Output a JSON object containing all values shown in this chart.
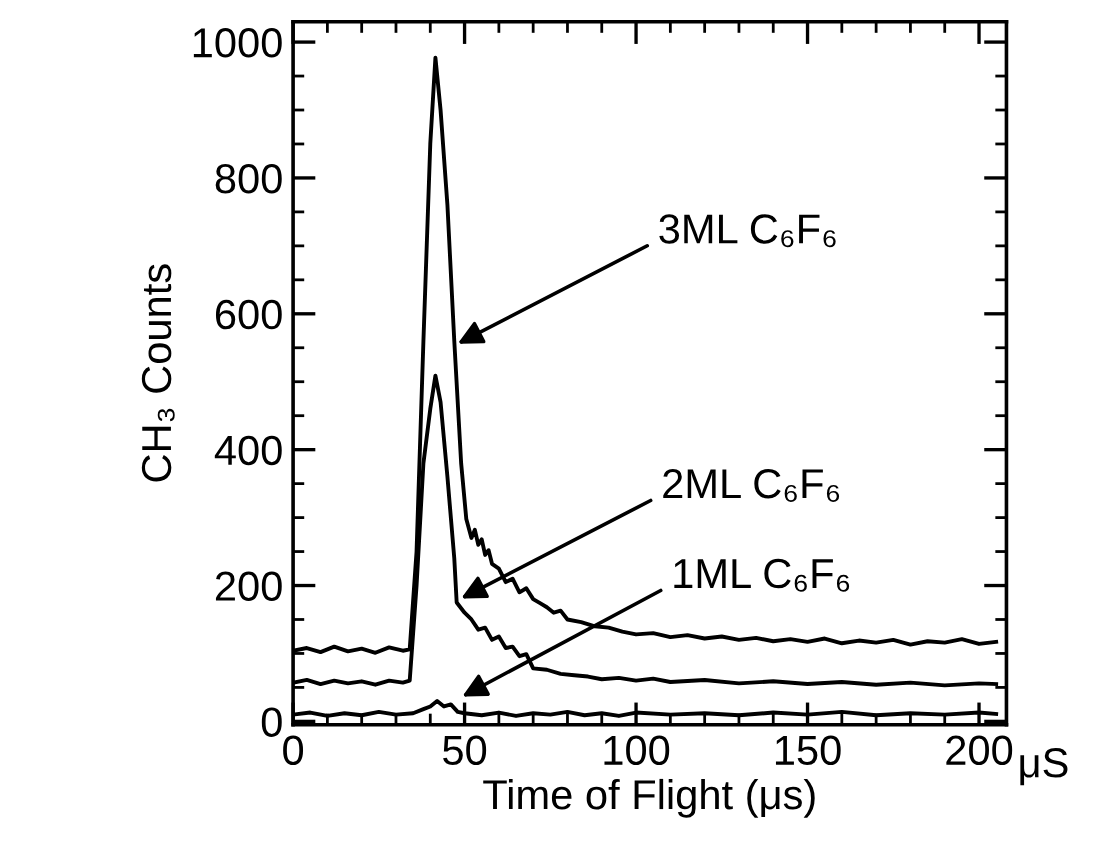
{
  "chart_data": {
    "type": "line",
    "xlabel": "Time of Flight (μs)",
    "ylabel": "CH₃ Counts",
    "xlim": [
      0,
      208
    ],
    "ylim": [
      -5,
      1030
    ],
    "xticks": [
      0,
      50,
      100,
      150,
      200
    ],
    "yticks": [
      0,
      200,
      400,
      600,
      800,
      1000
    ],
    "grid": false,
    "marker": "none",
    "line_style": "solid",
    "series": [
      {
        "color": "#000000",
        "x": [
          0,
          4,
          8,
          12,
          16,
          20,
          24,
          28,
          32,
          34,
          36,
          38,
          40,
          41.5,
          43,
          45,
          47,
          49,
          50.5,
          52,
          53,
          54,
          55,
          56,
          57,
          58,
          60,
          62,
          64,
          66,
          68,
          70,
          72,
          74,
          76,
          78,
          80,
          84,
          88,
          92,
          96,
          100,
          105,
          110,
          115,
          120,
          125,
          130,
          135,
          140,
          145,
          150,
          155,
          160,
          165,
          170,
          175,
          180,
          185,
          190,
          195,
          200,
          205
        ],
        "values": [
          104,
          108,
          102,
          110,
          103,
          107,
          101,
          109,
          104,
          106,
          250,
          560,
          850,
          977,
          900,
          760,
          560,
          380,
          298,
          270,
          282,
          260,
          268,
          245,
          252,
          232,
          225,
          205,
          210,
          190,
          196,
          180,
          174,
          168,
          160,
          163,
          150,
          146,
          140,
          138,
          132,
          128,
          130,
          124,
          127,
          122,
          125,
          120,
          123,
          118,
          121,
          117,
          122,
          115,
          119,
          116,
          120,
          113,
          118,
          116,
          121,
          114,
          117
        ]
      },
      {
        "color": "#000000",
        "x": [
          0,
          4,
          8,
          12,
          16,
          20,
          24,
          28,
          32,
          34,
          36,
          38,
          40,
          41.5,
          43,
          45,
          47,
          47.7,
          50,
          52,
          54,
          56,
          58,
          60,
          62,
          64,
          66,
          68,
          70,
          74,
          78,
          82,
          86,
          90,
          95,
          100,
          105,
          110,
          120,
          130,
          140,
          150,
          160,
          170,
          180,
          190,
          200,
          205
        ],
        "values": [
          57,
          61,
          55,
          60,
          56,
          59,
          54,
          60,
          57,
          60,
          200,
          380,
          460,
          509,
          470,
          360,
          240,
          175,
          160,
          150,
          135,
          138,
          120,
          125,
          108,
          110,
          96,
          99,
          78,
          76,
          70,
          68,
          66,
          62,
          64,
          60,
          63,
          58,
          61,
          56,
          59,
          55,
          58,
          54,
          57,
          53,
          56,
          55
        ]
      },
      {
        "color": "#000000",
        "x": [
          0,
          5,
          10,
          15,
          20,
          25,
          30,
          35,
          38,
          40,
          42,
          44,
          46,
          48,
          50,
          55,
          60,
          65,
          70,
          75,
          80,
          85,
          90,
          95,
          100,
          110,
          120,
          130,
          140,
          150,
          160,
          170,
          180,
          190,
          200,
          205
        ],
        "values": [
          10,
          13,
          8,
          12,
          9,
          14,
          10,
          12,
          18,
          22,
          30,
          22,
          25,
          14,
          12,
          9,
          13,
          8,
          12,
          10,
          14,
          9,
          12,
          8,
          13,
          10,
          12,
          9,
          13,
          10,
          14,
          9,
          12,
          10,
          13,
          11
        ]
      }
    ],
    "annotations": [
      {
        "text": "3ML C₆F₆",
        "x": 48,
        "y": 556
      },
      {
        "text": "2ML C₆F₆",
        "x": 49,
        "y": 181
      },
      "1ML C₆F₆",
      "μS"
    ]
  }
}
